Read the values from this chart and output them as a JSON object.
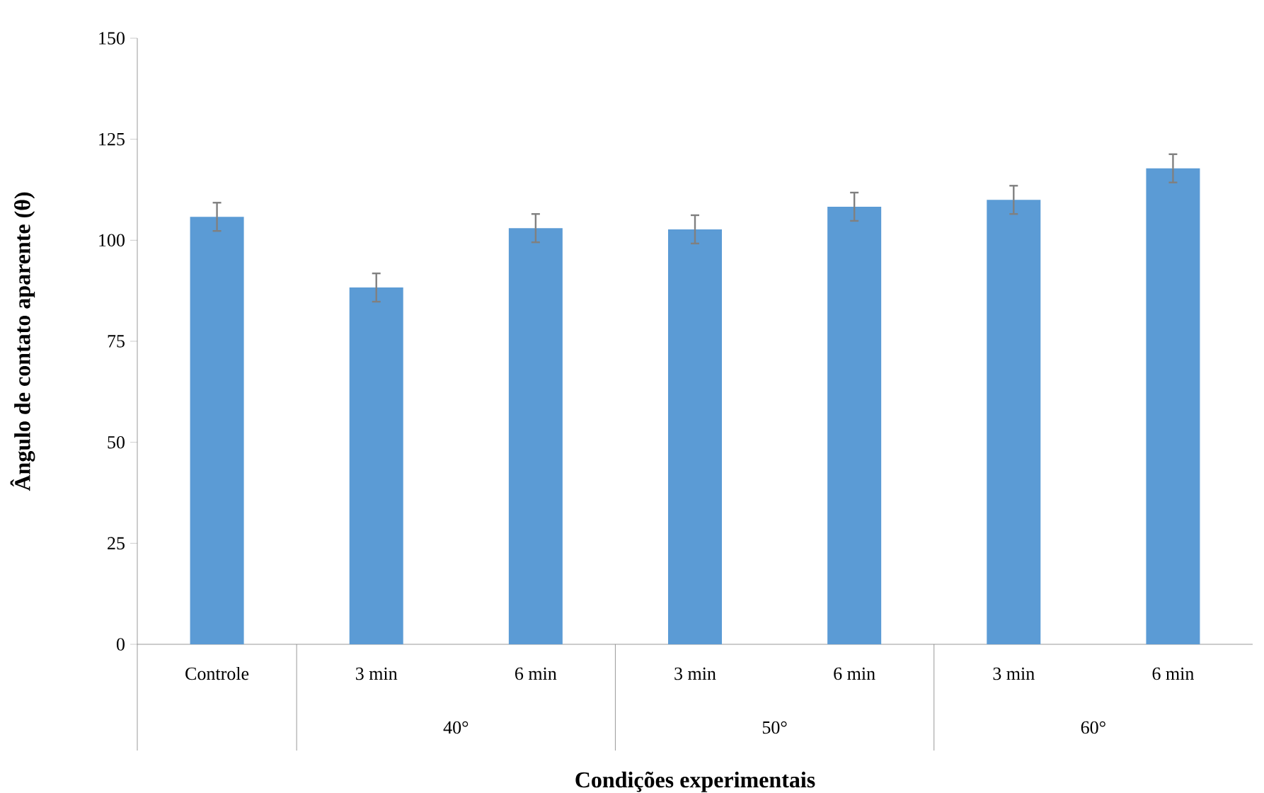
{
  "chart_data": {
    "type": "bar",
    "categories": [
      "Controle",
      "3 min",
      "6 min",
      "3 min",
      "6 min",
      "3 min",
      "6 min"
    ],
    "values": [
      105.8,
      88.3,
      103,
      102.7,
      108.3,
      110,
      117.8
    ],
    "errors": [
      3.5,
      3.5,
      3.5,
      3.5,
      3.5,
      3.5,
      3.5
    ],
    "color": "#5b9bd5",
    "xlabel": "Condições experimentais",
    "ylabel": "Ângulo de contato aparente (θ)",
    "annotations": [
      "40°",
      "50°",
      "60°"
    ],
    "ylim": [
      0,
      150
    ],
    "yticks": [
      0,
      25,
      50,
      75,
      100,
      125,
      150
    ],
    "grid": false
  }
}
